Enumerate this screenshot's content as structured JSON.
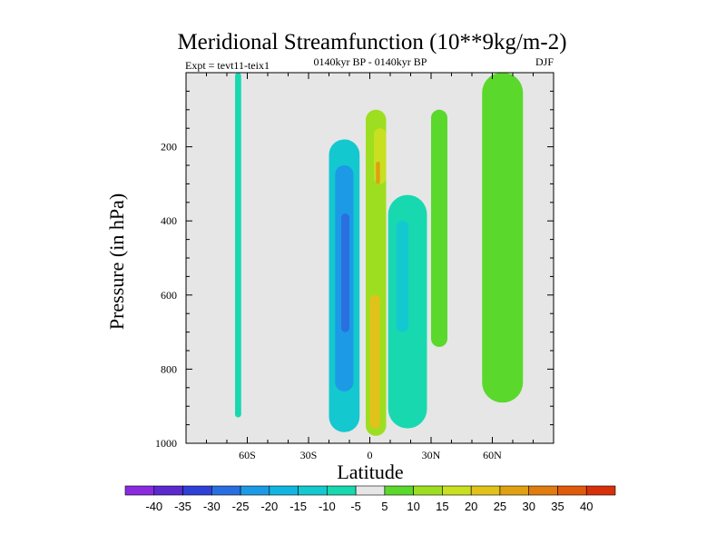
{
  "chart_data": {
    "type": "heatmap",
    "title": "Meridional Streamfunction (10**9kg/m-2)",
    "subtitle_left": "Expt = tevt11-teix1",
    "subtitle_center": "0140kyr BP - 0140kyr BP",
    "subtitle_right": "DJF",
    "xlabel": "Latitude",
    "ylabel": "Pressure (in hPa)",
    "xlim": [
      -90,
      90
    ],
    "ylim": [
      0,
      1000
    ],
    "y_inverted": true,
    "x_ticks": [
      {
        "value": -60,
        "label": "60S"
      },
      {
        "value": -30,
        "label": "30S"
      },
      {
        "value": 0,
        "label": "0"
      },
      {
        "value": 30,
        "label": "30N"
      },
      {
        "value": 60,
        "label": "60N"
      }
    ],
    "y_ticks": [
      {
        "value": 200,
        "label": "200"
      },
      {
        "value": 400,
        "label": "400"
      },
      {
        "value": 600,
        "label": "600"
      },
      {
        "value": 800,
        "label": "800"
      },
      {
        "value": 1000,
        "label": "1000"
      }
    ],
    "colorbar": {
      "labels": [
        "-40",
        "-35",
        "-30",
        "-25",
        "-20",
        "-15",
        "-10",
        "-5",
        "5",
        "10",
        "15",
        "20",
        "25",
        "30",
        "35",
        "40"
      ],
      "colors": [
        "#8a2be2",
        "#5a2ad0",
        "#2f3fd8",
        "#2a6fe0",
        "#1c9ae6",
        "#10b6e0",
        "#14c8d0",
        "#18d8b0",
        "#e6e6e6",
        "#5ad82c",
        "#9ede20",
        "#c8e020",
        "#e0c21a",
        "#e0a012",
        "#e07c10",
        "#e05a0c",
        "#d8300a"
      ]
    },
    "field": {
      "background_value": 0,
      "features": [
        {
          "lat_range": [
            -66,
            -63
          ],
          "p_range": [
            0,
            930
          ],
          "value": -7.5
        },
        {
          "lat_range": [
            -20,
            -5
          ],
          "p_range": [
            180,
            970
          ],
          "value": -12
        },
        {
          "lat_range": [
            -17,
            -8
          ],
          "p_range": [
            250,
            860
          ],
          "value": -22
        },
        {
          "lat_range": [
            -14,
            -10
          ],
          "p_range": [
            380,
            700
          ],
          "value": -27
        },
        {
          "lat_range": [
            -2,
            8
          ],
          "p_range": [
            100,
            980
          ],
          "value": 12
        },
        {
          "lat_range": [
            2,
            8
          ],
          "p_range": [
            150,
            300
          ],
          "value": 17
        },
        {
          "lat_range": [
            3,
            5
          ],
          "p_range": [
            240,
            300
          ],
          "value": 27
        },
        {
          "lat_range": [
            0,
            5
          ],
          "p_range": [
            600,
            960
          ],
          "value": 22
        },
        {
          "lat_range": [
            9,
            28
          ],
          "p_range": [
            330,
            960
          ],
          "value": -8
        },
        {
          "lat_range": [
            13,
            19
          ],
          "p_range": [
            400,
            700
          ],
          "value": -12
        },
        {
          "lat_range": [
            30,
            38
          ],
          "p_range": [
            100,
            740
          ],
          "value": 7.5
        },
        {
          "lat_range": [
            55,
            75
          ],
          "p_range": [
            0,
            890
          ],
          "value": 7.5
        }
      ]
    }
  }
}
